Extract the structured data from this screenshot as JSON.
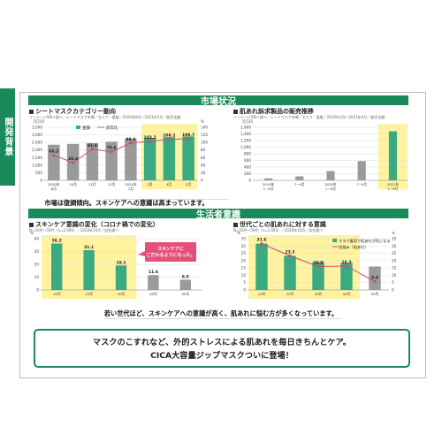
{
  "sidebar": {
    "label": "開発背景"
  },
  "band_market": "市場状況",
  "band_life": "生活者意識",
  "footer": {
    "line1": "マスクのこすれなど、外的ストレスによる肌あれを毎日きちんとケア。",
    "line2": "CICA大容量ジップマスクついに登場！"
  },
  "colors": {
    "brand": "#1b8a5a",
    "bar": "#3aaa7f",
    "gray_bar": "#9a9a9a",
    "highlight": "#fff3a0",
    "line": "#c8506f",
    "callout": "#e3507a"
  },
  "chart_data": [
    {
      "type": "bar",
      "title": "シートマスクカテゴリー動向",
      "note": "インテージSRI+調べ／シートマスク市場／セルフ・量販／2020年8月～2021年5月／販売金額",
      "categories": [
        "2020年 8月",
        "10月",
        "11月",
        "12月",
        "2021年 1月",
        "3月",
        "4月",
        "5月"
      ],
      "series": [
        {
          "name": "金額",
          "axis": "left",
          "values": [
            2350,
            2400,
            2450,
            2550,
            2750,
            2800,
            2850,
            2900
          ]
        },
        {
          "name": "前年比",
          "axis": "right",
          "values": [
            66.2,
            46.4,
            81.9,
            75.6,
            98.4,
            103.2,
            108.2,
            109.7
          ]
        }
      ],
      "highlight": [
        "3月",
        "4月",
        "5月"
      ],
      "yticks": [
        "0",
        "500",
        "1,000",
        "1,500",
        "2,000",
        "2,500",
        "3,000",
        "3,500"
      ],
      "y2ticks": [
        "0",
        "20",
        "40",
        "60",
        "80",
        "100",
        "120",
        "140"
      ],
      "ylabel": "百万円",
      "y2label": "%",
      "ylim": [
        0,
        3500
      ],
      "y2lim": [
        0,
        140
      ],
      "caption": "市場は復調傾向。スキンケアへの意識は高まっています。"
    },
    {
      "type": "bar",
      "title": "肌あれ訴求製品の販売推移",
      "note": "インテージSRI+調べ／シートマスク市場／セルフ・量販／2019年1月～2021年6月／販売金額",
      "categories": [
        "2019年 1~6月",
        "7~9月",
        "2020年 1~6月",
        "7~9月",
        "2021年 1~6月"
      ],
      "values": [
        60,
        120,
        280,
        580,
        1480
      ],
      "highlight": [
        "2021年 1~6月"
      ],
      "yticks": [
        "0",
        "200",
        "400",
        "600",
        "800",
        "1,000",
        "1,200",
        "1,400",
        "1,600"
      ],
      "ylabel": "百万円",
      "ylim": [
        0,
        1600
      ]
    },
    {
      "type": "bar",
      "title": "スキンケア意識の変化（コロナ禍での変化）",
      "note": "N=10代～50代（n=2,000）／2020年10月／自社調べ",
      "categories": [
        "10代",
        "20代",
        "30代",
        "40代",
        "50代"
      ],
      "values": [
        36.2,
        31.1,
        19.1,
        11.6,
        8.0
      ],
      "highlight": [
        "10代",
        "20代",
        "30代"
      ],
      "yticks": [
        "0",
        "10",
        "20",
        "30",
        "40"
      ],
      "ylabel": "%",
      "ylim": [
        0,
        40
      ],
      "callout": "スキンケアに こだわるようになった。"
    },
    {
      "type": "bar",
      "title": "世代ごとの肌あれに対する意識",
      "note": "N=10代～50代（n=2,000）／2020年10月／自社調べ",
      "categories": [
        "10代",
        "20代",
        "30代",
        "40代",
        "50代"
      ],
      "series": [
        {
          "name": "マスク着用で肌あれが気になる",
          "axis": "left",
          "values": [
            31.6,
            23.3,
            19.0,
            18.5,
            16.0
          ]
        },
        {
          "name": "肌悩み（肌あれ）",
          "axis": "right",
          "values": [
            31.6,
            23.3,
            16.0,
            16.3,
            5.8
          ]
        }
      ],
      "labels": [
        "31.6",
        "23.3",
        "16.0",
        "16.3",
        "5.8"
      ],
      "highlight": [
        "10代",
        "20代",
        "30代",
        "40代"
      ],
      "yticks": [
        "0",
        "5",
        "10",
        "15",
        "20",
        "25",
        "30",
        "35"
      ],
      "y2ticks": [
        "0",
        "5",
        "10",
        "15",
        "20",
        "25",
        "30",
        "35"
      ],
      "ylabel": "%",
      "y2label": "%",
      "ylim": [
        0,
        35
      ],
      "y2lim": [
        0,
        35
      ],
      "caption": "若い世代ほど、スキンケアへの意識が高く、肌あれに悩む方が多くなっています。"
    }
  ]
}
